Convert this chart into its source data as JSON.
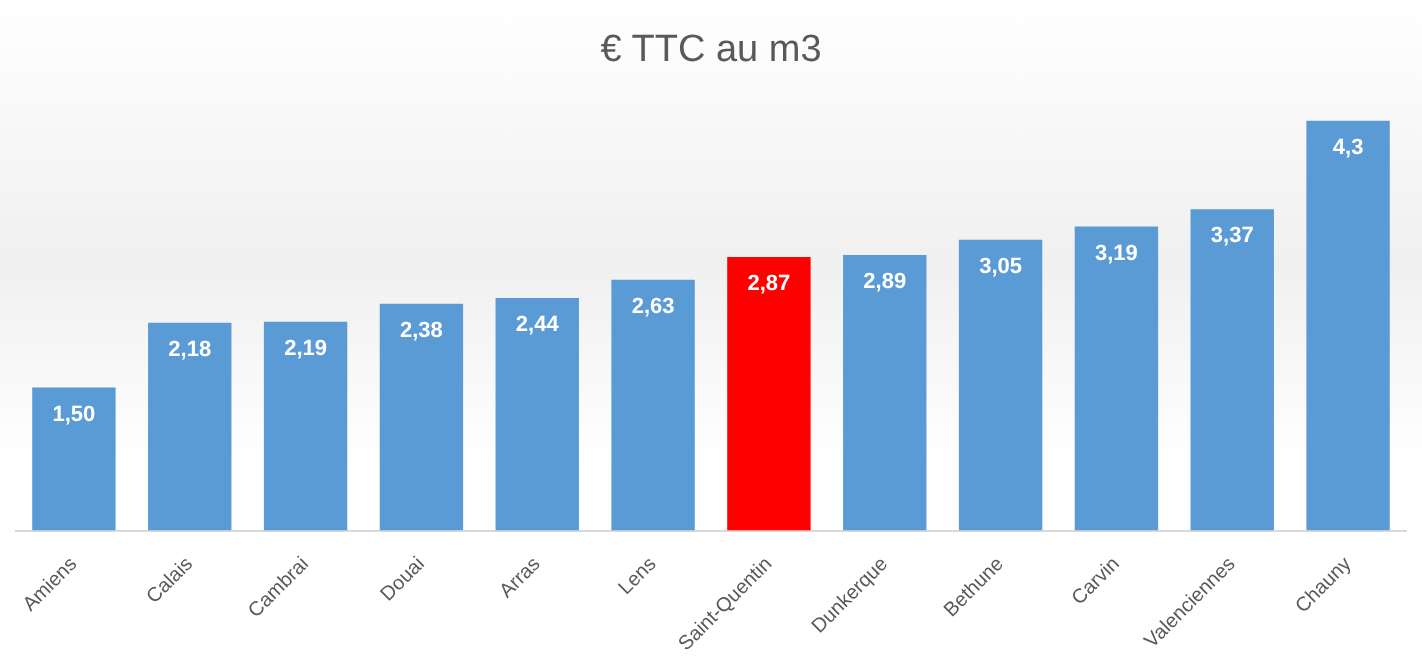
{
  "chart_data": {
    "type": "bar",
    "title": "€ TTC au m3",
    "categories": [
      "Amiens",
      "Calais",
      "Cambrai",
      "Douai",
      "Arras",
      "Lens",
      "Saint-Quentin",
      "Dunkerque",
      "Bethune",
      "Carvin",
      "Valenciennes",
      "Chauny"
    ],
    "values": [
      1.5,
      2.18,
      2.19,
      2.38,
      2.44,
      2.63,
      2.87,
      2.89,
      3.05,
      3.19,
      3.37,
      4.3
    ],
    "value_labels": [
      "1,50",
      "2,18",
      "2,19",
      "2,38",
      "2,44",
      "2,63",
      "2,87",
      "2,89",
      "3,05",
      "3,19",
      "3,37",
      "4,3"
    ],
    "colors": [
      "#5b9bd5",
      "#5b9bd5",
      "#5b9bd5",
      "#5b9bd5",
      "#5b9bd5",
      "#5b9bd5",
      "#ff0000",
      "#5b9bd5",
      "#5b9bd5",
      "#5b9bd5",
      "#5b9bd5",
      "#5b9bd5"
    ],
    "grid": false,
    "legend": false,
    "tick_labels": "x"
  }
}
